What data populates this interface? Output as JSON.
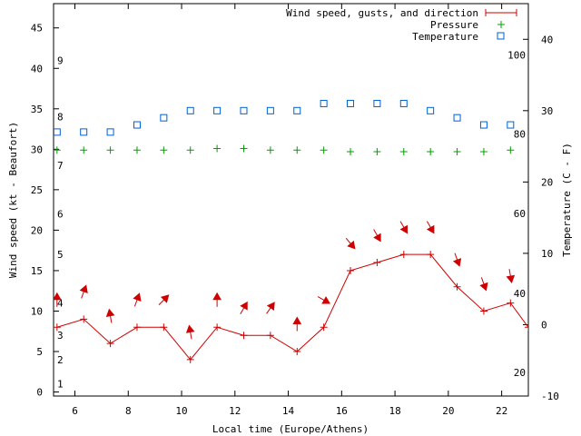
{
  "chart_data": {
    "type": "line",
    "xlabel": "Local time (Europe/Athens)",
    "ylabel": "Wind speed (kt - Beaufort)",
    "y2label": "Temperature (C - F)",
    "xlim": [
      5.2,
      23.0
    ],
    "ylim": [
      -0.5,
      48
    ],
    "y2lim": [
      -10,
      45
    ],
    "x_ticks": [
      6,
      8,
      10,
      12,
      14,
      16,
      18,
      20,
      22
    ],
    "y_ticks": [
      0,
      5,
      10,
      15,
      20,
      25,
      30,
      35,
      40,
      45
    ],
    "y2_ticks": [
      -10,
      0,
      10,
      20,
      30,
      40
    ],
    "beaufort_labels": [
      {
        "text": "1",
        "y": 1
      },
      {
        "text": "2",
        "y": 4
      },
      {
        "text": "3",
        "y": 7
      },
      {
        "text": "4",
        "y": 11
      },
      {
        "text": "5",
        "y": 17
      },
      {
        "text": "6",
        "y": 22
      },
      {
        "text": "7",
        "y": 28
      },
      {
        "text": "8",
        "y": 34
      },
      {
        "text": "9",
        "y": 41
      }
    ],
    "fahrenheit_labels": [
      {
        "text": "20",
        "c": -6.7
      },
      {
        "text": "40",
        "c": 4.4
      },
      {
        "text": "60",
        "c": 15.6
      },
      {
        "text": "80",
        "c": 26.7
      },
      {
        "text": "100",
        "c": 37.8
      }
    ],
    "legend": {
      "position": "top-right",
      "entries": [
        "Wind speed, gusts, and direction",
        "Pressure",
        "Temperature"
      ]
    },
    "series": [
      {
        "name": "Wind speed, gusts, and direction",
        "color": "#d00000",
        "x": [
          5.33,
          6.33,
          7.33,
          8.33,
          9.33,
          10.33,
          11.33,
          12.33,
          13.33,
          14.33,
          15.33,
          16.33,
          17.33,
          18.33,
          19.33,
          20.33,
          21.33,
          22.33,
          23.0
        ],
        "values": [
          8,
          9,
          6,
          8,
          8,
          4,
          8,
          7,
          7,
          5,
          8,
          15,
          16,
          17,
          17,
          13,
          10,
          11,
          8
        ],
        "direction_deg": [
          180,
          200,
          170,
          200,
          225,
          170,
          180,
          210,
          215,
          180,
          300,
          320,
          330,
          330,
          330,
          340,
          340,
          350
        ]
      },
      {
        "name": "Pressure",
        "color": "#00a000",
        "axis": "left",
        "x": [
          5.33,
          6.33,
          7.33,
          8.33,
          9.33,
          10.33,
          11.33,
          12.33,
          13.33,
          14.33,
          15.33,
          16.33,
          17.33,
          18.33,
          19.33,
          20.33,
          21.33,
          22.33
        ],
        "values": [
          29.9,
          29.9,
          29.9,
          29.9,
          29.9,
          29.9,
          30.1,
          30.1,
          29.9,
          29.9,
          29.9,
          29.7,
          29.7,
          29.7,
          29.7,
          29.7,
          29.7,
          29.9
        ]
      },
      {
        "name": "Temperature",
        "color": "#0060d0",
        "axis": "right",
        "x": [
          5.33,
          6.33,
          7.33,
          8.33,
          9.33,
          10.33,
          11.33,
          12.33,
          13.33,
          14.33,
          15.33,
          16.33,
          17.33,
          18.33,
          19.33,
          20.33,
          21.33,
          22.33
        ],
        "values": [
          27,
          27,
          27,
          28,
          29,
          30,
          30,
          30,
          30,
          30,
          31,
          31,
          31,
          31,
          30,
          29,
          28,
          28
        ]
      }
    ]
  }
}
